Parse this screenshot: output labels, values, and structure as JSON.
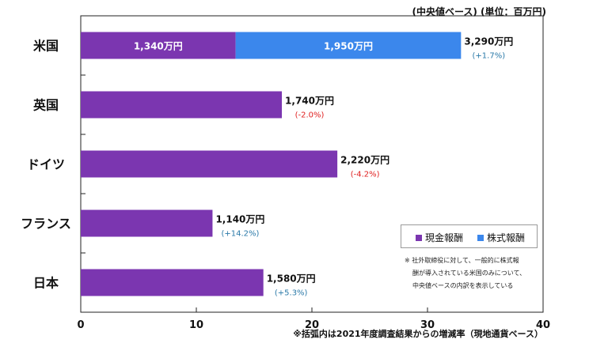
{
  "unit_note": "(中央値ベース) (単位：百万円)",
  "colors": {
    "cash": "#7b36b0",
    "stock": "#3b87ec",
    "positive": "#2a79a8",
    "negative": "#e02020"
  },
  "chart_data": {
    "type": "bar",
    "orientation": "horizontal",
    "stacked": true,
    "categories": [
      "米国",
      "英国",
      "ドイツ",
      "フランス",
      "日本"
    ],
    "series": [
      {
        "name": "現金報酬",
        "values": [
          13.4,
          17.4,
          22.2,
          11.4,
          15.8
        ],
        "labels": [
          "1,340万円",
          "",
          "",
          "",
          ""
        ]
      },
      {
        "name": "株式報酬",
        "values": [
          19.5,
          0,
          0,
          0,
          0
        ],
        "labels": [
          "1,950万円",
          "",
          "",
          "",
          ""
        ]
      }
    ],
    "totals": [
      "3,290万円",
      "1,740万円",
      "2,220万円",
      "1,140万円",
      "1,580万円"
    ],
    "changes": [
      "(+1.7%)",
      "(-2.0%)",
      "(-4.2%)",
      "(+14.2%)",
      "(+5.3%)"
    ],
    "xlim": [
      0,
      40
    ],
    "xticks": [
      0,
      10,
      20,
      30,
      40
    ],
    "grid": false,
    "legend_position": "lower-right"
  },
  "legend": {
    "cash_label": "現金報酬",
    "stock_label": "株式報酬"
  },
  "footnote_lines": [
    "※ 社外取締役に対して、一般的に株式報",
    "酬が導入されている米国のみについて、",
    "中央値ベースの内訳を表示している"
  ],
  "bottom_note": "※括弧内は2021年度調査結果からの増減率（現地通貨ベース）"
}
